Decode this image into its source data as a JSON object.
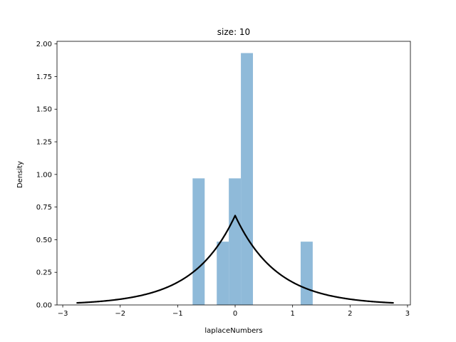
{
  "chart_data": {
    "type": "bar",
    "title": "size: 10",
    "xlabel": "laplaceNumbers",
    "ylabel": "Density",
    "xlim": [
      -3.1,
      3.05
    ],
    "ylim": [
      0,
      2.02
    ],
    "xticks": [
      -3,
      -2,
      -1,
      0,
      1,
      2,
      3
    ],
    "xtick_labels": [
      "−3",
      "−2",
      "−1",
      "0",
      "1",
      "2",
      "3"
    ],
    "yticks": [
      0.0,
      0.25,
      0.5,
      0.75,
      1.0,
      1.25,
      1.5,
      1.75,
      2.0
    ],
    "ytick_labels": [
      "0.00",
      "0.25",
      "0.50",
      "0.75",
      "1.00",
      "1.25",
      "1.50",
      "1.75",
      "2.00"
    ],
    "grid": false,
    "series": [
      {
        "kind": "histogram",
        "color": "#8fbad9",
        "bins": [
          {
            "x0": -0.74,
            "x1": -0.53,
            "density": 0.97
          },
          {
            "x0": -0.32,
            "x1": -0.11,
            "density": 0.485
          },
          {
            "x0": -0.11,
            "x1": 0.1,
            "density": 0.97
          },
          {
            "x0": 0.1,
            "x1": 0.31,
            "density": 1.93
          },
          {
            "x0": 1.14,
            "x1": 1.35,
            "density": 0.485
          }
        ]
      },
      {
        "kind": "line",
        "color": "#000000",
        "pdf": "laplace",
        "loc": 0.0,
        "scale": 0.73,
        "x_range": [
          -2.76,
          2.76
        ]
      }
    ]
  }
}
